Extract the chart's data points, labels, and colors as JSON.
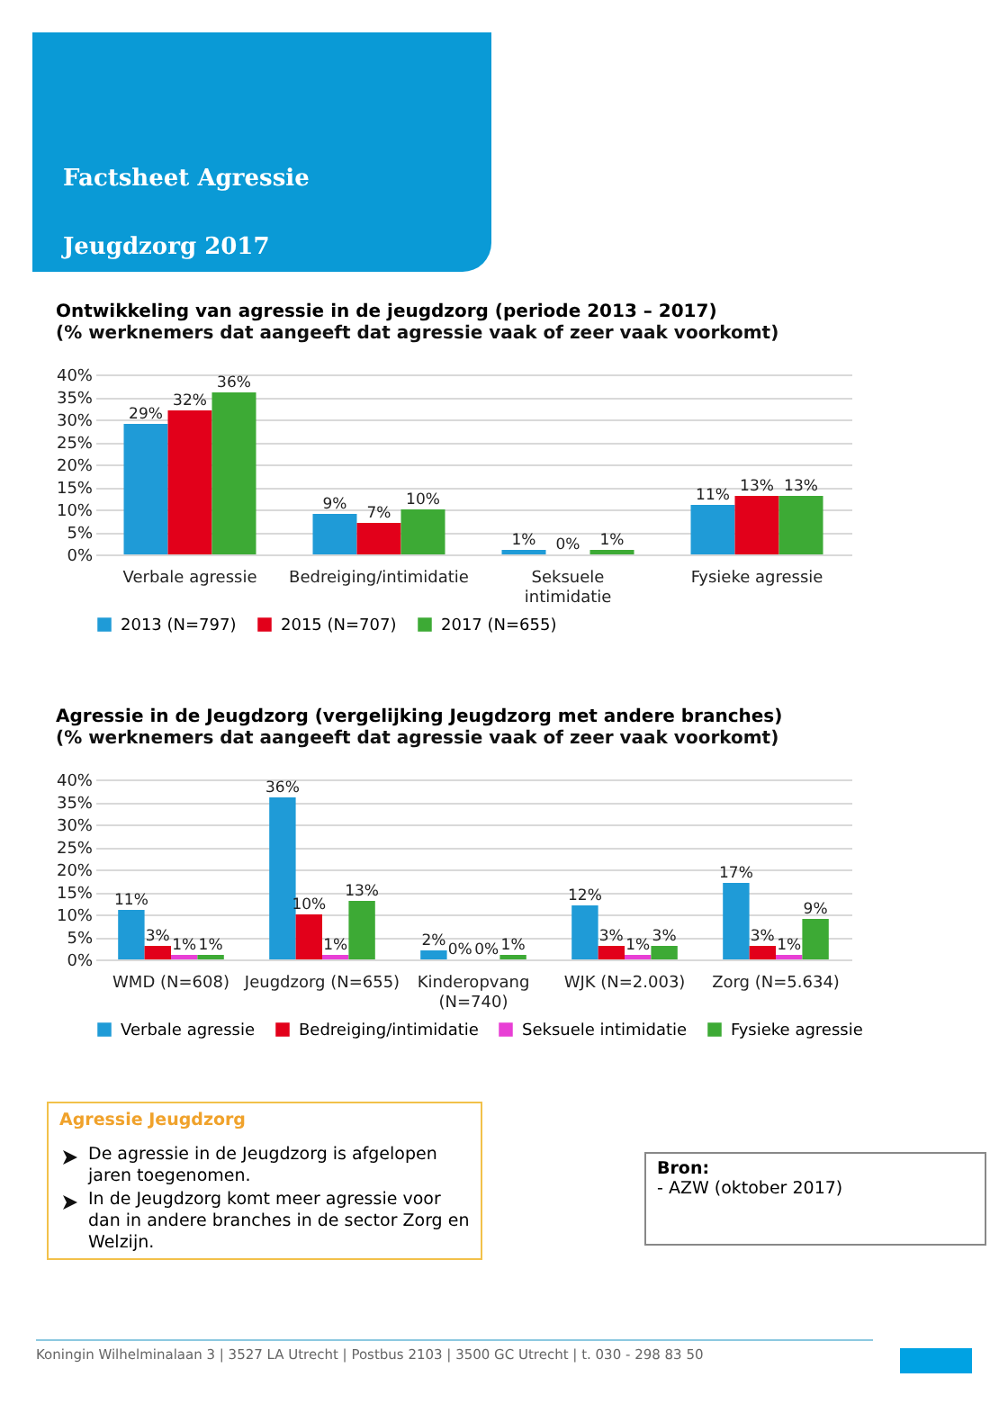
{
  "chart_data": [
    {
      "type": "other",
      "title": "Factsheet Agressie",
      "subtitle": "Jeugdzorg 2017"
    },
    {
      "type": "bar",
      "title": "Ontwikkeling van agressie in de jeugdzorg (periode 2013 – 2017)",
      "subtitle": "(% werknemers dat aangeeft dat agressie vaak of zeer vaak voorkomt)",
      "categories": [
        "Verbale agressie",
        "Bedreiging/intimidatie",
        "Seksuele intimidatie",
        "Fysieke agressie"
      ],
      "series": [
        {
          "name": "2013 (N=797)",
          "color": "#1f9bd7",
          "values": [
            29,
            9,
            1,
            11
          ],
          "value_labels": [
            "29%",
            "9%",
            "1%",
            "11%"
          ]
        },
        {
          "name": "2015 (N=707)",
          "color": "#e2001a",
          "values": [
            32,
            7,
            0,
            13
          ],
          "value_labels": [
            "32%",
            "7%",
            "0%",
            "13%"
          ]
        },
        {
          "name": "2017 (N=655)",
          "color": "#3daa35",
          "values": [
            36,
            10,
            1,
            13
          ],
          "value_labels": [
            "36%",
            "10%",
            "1%",
            "13%"
          ]
        }
      ],
      "ylim": [
        0,
        40
      ],
      "yticks": [
        {
          "value": 0,
          "label": "0%"
        },
        {
          "value": 5,
          "label": "5%"
        },
        {
          "value": 10,
          "label": "10%"
        },
        {
          "value": 15,
          "label": "15%"
        },
        {
          "value": 20,
          "label": "20%"
        },
        {
          "value": 25,
          "label": "25%"
        },
        {
          "value": 30,
          "label": "30%"
        },
        {
          "value": 35,
          "label": "35%"
        },
        {
          "value": 40,
          "label": "40%"
        }
      ],
      "grid": "y",
      "legend": "bottom"
    },
    {
      "type": "bar",
      "title": "Agressie in de Jeugdzorg (vergelijking Jeugdzorg met andere branches)",
      "subtitle": "(% werknemers dat aangeeft dat agressie vaak of zeer vaak voorkomt)",
      "categories": [
        "WMD (N=608)",
        "Jeugdzorg (N=655)",
        "Kinderopvang (N=740)",
        "WJK (N=2.003)",
        "Zorg (N=5.634)"
      ],
      "series": [
        {
          "name": "Verbale agressie",
          "color": "#1f9bd7",
          "values": [
            11,
            36,
            2,
            12,
            17
          ],
          "value_labels": [
            "11%",
            "36%",
            "2%",
            "12%",
            "17%"
          ]
        },
        {
          "name": "Bedreiging/intimidatie",
          "color": "#e2001a",
          "values": [
            3,
            10,
            0,
            3,
            3
          ],
          "value_labels": [
            "3%",
            "10%",
            "0%",
            "3%",
            "3%"
          ]
        },
        {
          "name": "Seksuele intimidatie",
          "color": "#e83fd5",
          "values": [
            1,
            1,
            0,
            1,
            1
          ],
          "value_labels": [
            "1%",
            "1%",
            "0%",
            "1%",
            "1%"
          ]
        },
        {
          "name": "Fysieke agressie",
          "color": "#3daa35",
          "values": [
            1,
            13,
            1,
            3,
            9
          ],
          "value_labels": [
            "1%",
            "13%",
            "1%",
            "3%",
            "9%"
          ]
        }
      ],
      "ylim": [
        0,
        40
      ],
      "yticks": [
        {
          "value": 0,
          "label": "0%"
        },
        {
          "value": 5,
          "label": "5%"
        },
        {
          "value": 10,
          "label": "10%"
        },
        {
          "value": 15,
          "label": "15%"
        },
        {
          "value": 20,
          "label": "20%"
        },
        {
          "value": 25,
          "label": "25%"
        },
        {
          "value": 30,
          "label": "30%"
        },
        {
          "value": 35,
          "label": "35%"
        },
        {
          "value": 40,
          "label": "40%"
        }
      ],
      "grid": "y",
      "legend": "bottom"
    },
    {
      "type": "other",
      "title": "Agressie Jeugdzorg",
      "annotations": [
        "De agressie in de Jeugdzorg is afgelopen jaren toegenomen.",
        "In de Jeugdzorg komt meer agressie voor dan in andere branches in de sector Zorg en Welzijn."
      ]
    },
    {
      "type": "other",
      "title": "Bron:",
      "annotations": [
        "- AZW (oktober 2017)"
      ]
    },
    {
      "type": "other",
      "annotations": [
        "Koningin Wilhelminalaan 3  |  3527 LA  Utrecht  |  Postbus 2103  |  3500 GC  Utrecht  |  t. 030 - 298 83 50"
      ]
    }
  ]
}
